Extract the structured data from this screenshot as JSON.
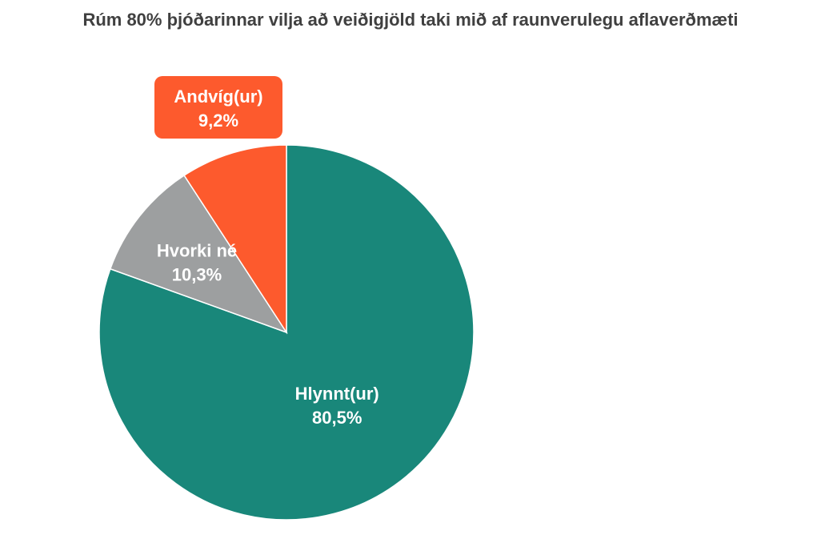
{
  "chart_data": {
    "type": "pie",
    "title": "Rúm 80% þjóðarinnar vilja að veiðigjöld taki mið af raunverulegu aflaverðmæti",
    "slices": [
      {
        "name": "Hlynnt(ur)",
        "value": 80.5,
        "value_label": "80,5%",
        "color": "#19877a"
      },
      {
        "name": "Hvorki né",
        "value": 10.3,
        "value_label": "10,3%",
        "color": "#9d9fa0"
      },
      {
        "name": "Andvíg(ur)",
        "value": 9.2,
        "value_label": "9,2%",
        "color": "#fd5a2d"
      }
    ],
    "start": "12 o'clock",
    "direction": "clockwise",
    "legend": "none"
  }
}
